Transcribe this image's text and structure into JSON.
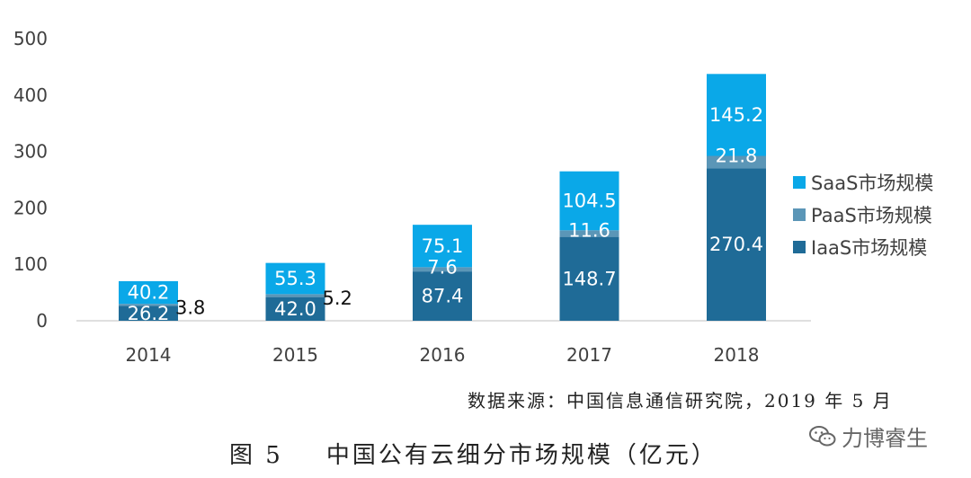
{
  "chart_data": {
    "type": "bar",
    "stacked": true,
    "categories": [
      "2014",
      "2015",
      "2016",
      "2017",
      "2018"
    ],
    "series": [
      {
        "name": "IaaS市场规模",
        "values": [
          26.2,
          42.0,
          87.4,
          148.7,
          270.4
        ],
        "labels": [
          "26.2",
          "42.0",
          "87.4",
          "148.7",
          "270.4"
        ],
        "color": "#1F6B97"
      },
      {
        "name": "PaaS市场规模",
        "values": [
          3.8,
          5.2,
          7.6,
          11.6,
          21.8
        ],
        "labels": [
          "3.8",
          "5.2",
          "7.6",
          "11.6",
          "21.8"
        ],
        "color": "#5B96B7"
      },
      {
        "name": "SaaS市场规模",
        "values": [
          40.2,
          55.3,
          75.1,
          104.5,
          145.2
        ],
        "labels": [
          "40.2",
          "55.3",
          "75.1",
          "104.5",
          "145.2"
        ],
        "color": "#0AA8E8"
      }
    ],
    "ylim": [
      0,
      500
    ],
    "yticks": [
      "0",
      "100",
      "200",
      "300",
      "400",
      "500"
    ],
    "legend_position": "right",
    "grid": false,
    "xlabel": "",
    "ylabel": ""
  },
  "source_text": "数据来源：中国信息通信研究院，2019 年 5 月",
  "caption": {
    "number": "图 5",
    "title": "中国公有云细分市场规模（亿元）"
  },
  "watermark": {
    "text": "力博睿生",
    "icon": "wechat-icon"
  }
}
